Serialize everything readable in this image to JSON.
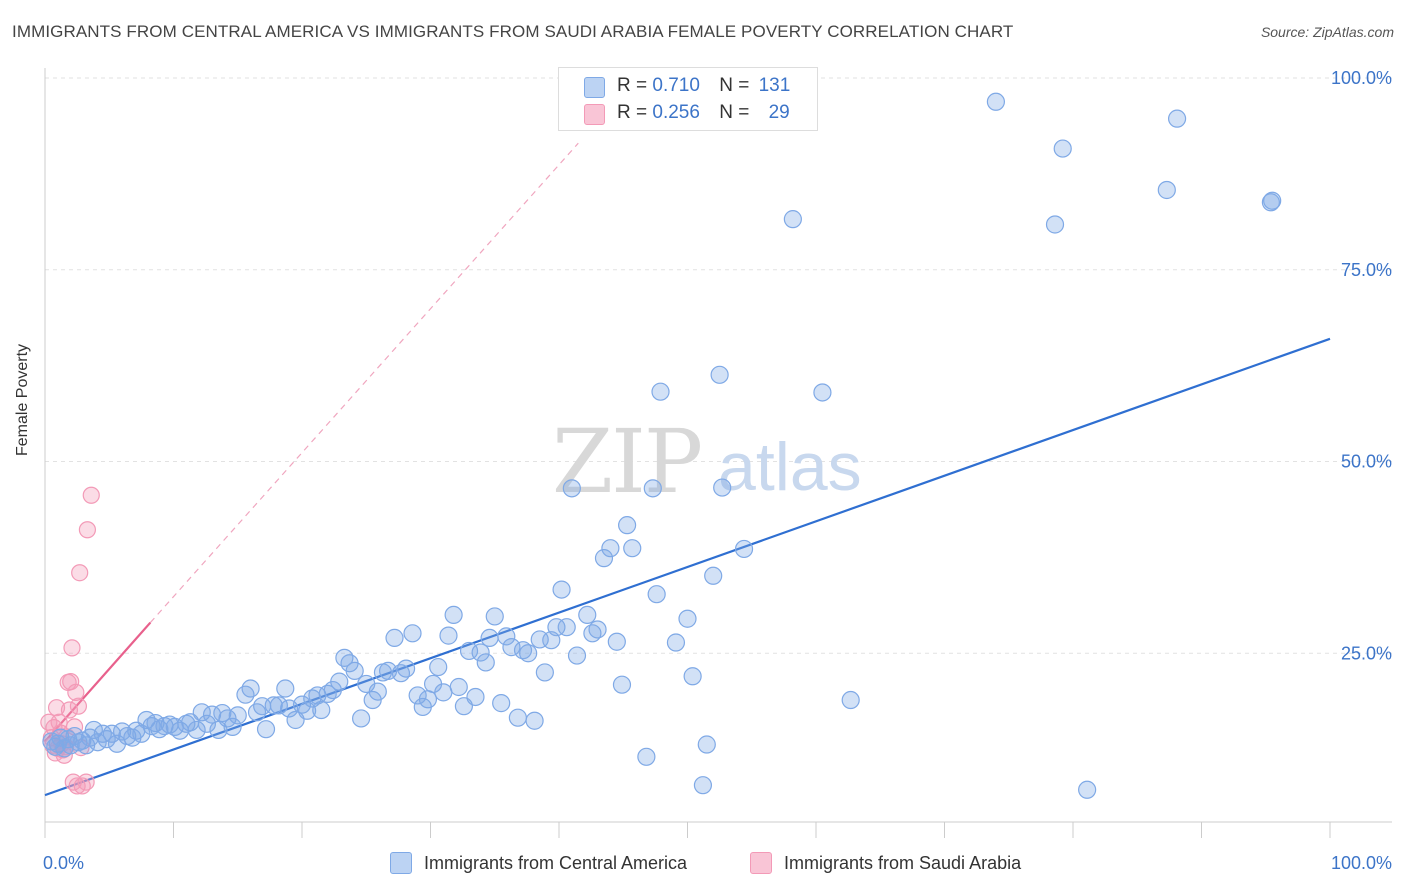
{
  "title": "IMMIGRANTS FROM CENTRAL AMERICA VS IMMIGRANTS FROM SAUDI ARABIA FEMALE POVERTY CORRELATION CHART",
  "source": "Source: ZipAtlas.com",
  "watermark": {
    "zip": "ZIP",
    "atlas": "atlas"
  },
  "legend_top": [
    {
      "r_label": "R =",
      "r_value": "0.710",
      "n_label": "N =",
      "n_value": "131"
    },
    {
      "r_label": "R =",
      "r_value": "0.256",
      "n_label": "N =",
      "n_value": "29"
    }
  ],
  "chart_data": {
    "type": "scatter",
    "title": "IMMIGRANTS FROM CENTRAL AMERICA VS IMMIGRANTS FROM SAUDI ARABIA FEMALE POVERTY CORRELATION CHART",
    "xlabel": "",
    "ylabel": "Female Poverty",
    "xlim": [
      0,
      100
    ],
    "ylim": [
      0,
      105
    ],
    "x_tick_labels": [
      "0.0%",
      "100.0%"
    ],
    "y_ticks": [
      25,
      50,
      75,
      100
    ],
    "y_tick_labels": [
      "25.0%",
      "50.0%",
      "75.0%",
      "100.0%"
    ],
    "legend_position": "bottom",
    "grid": true,
    "series": [
      {
        "name": "Immigrants from Central America",
        "color": "#7fa9e6",
        "line_color": "#2f6fd1",
        "r": 0.71,
        "n": 131,
        "trend": {
          "x": [
            0,
            100
          ],
          "y": [
            6.5,
            66.0
          ]
        },
        "points": [
          [
            0.5,
            13.5
          ],
          [
            0.8,
            12.8
          ],
          [
            1.0,
            13.2
          ],
          [
            1.2,
            14.0
          ],
          [
            1.5,
            12.6
          ],
          [
            1.8,
            13.8
          ],
          [
            2.0,
            13.0
          ],
          [
            2.3,
            14.2
          ],
          [
            2.6,
            13.4
          ],
          [
            2.9,
            13.6
          ],
          [
            3.2,
            13.0
          ],
          [
            3.5,
            14.0
          ],
          [
            3.8,
            15.0
          ],
          [
            4.1,
            13.4
          ],
          [
            4.5,
            14.5
          ],
          [
            4.8,
            13.8
          ],
          [
            5.2,
            14.5
          ],
          [
            5.6,
            13.2
          ],
          [
            6.0,
            14.8
          ],
          [
            6.4,
            14.2
          ],
          [
            6.8,
            14.0
          ],
          [
            7.1,
            14.9
          ],
          [
            7.5,
            14.5
          ],
          [
            7.9,
            16.3
          ],
          [
            8.3,
            15.5
          ],
          [
            8.6,
            15.9
          ],
          [
            8.9,
            15.1
          ],
          [
            9.3,
            15.5
          ],
          [
            9.7,
            15.7
          ],
          [
            10.1,
            15.4
          ],
          [
            10.5,
            14.9
          ],
          [
            11.0,
            15.8
          ],
          [
            11.3,
            16.0
          ],
          [
            11.8,
            15.0
          ],
          [
            12.2,
            17.3
          ],
          [
            12.6,
            15.8
          ],
          [
            13.0,
            17.0
          ],
          [
            13.5,
            15.0
          ],
          [
            13.8,
            17.2
          ],
          [
            14.2,
            16.5
          ],
          [
            14.6,
            15.4
          ],
          [
            15.0,
            16.9
          ],
          [
            15.6,
            19.6
          ],
          [
            16.0,
            20.4
          ],
          [
            16.5,
            17.3
          ],
          [
            16.9,
            18.1
          ],
          [
            17.2,
            15.1
          ],
          [
            17.8,
            18.2
          ],
          [
            18.2,
            18.2
          ],
          [
            18.7,
            20.4
          ],
          [
            19.0,
            17.8
          ],
          [
            19.5,
            16.3
          ],
          [
            20.0,
            18.3
          ],
          [
            20.4,
            17.5
          ],
          [
            20.8,
            19.1
          ],
          [
            21.2,
            19.5
          ],
          [
            21.5,
            17.6
          ],
          [
            22.0,
            19.7
          ],
          [
            22.4,
            20.2
          ],
          [
            22.9,
            21.3
          ],
          [
            23.3,
            24.4
          ],
          [
            23.7,
            23.7
          ],
          [
            24.1,
            22.7
          ],
          [
            24.6,
            16.5
          ],
          [
            25.0,
            21.0
          ],
          [
            25.5,
            18.9
          ],
          [
            25.9,
            20.0
          ],
          [
            26.3,
            22.5
          ],
          [
            26.7,
            22.7
          ],
          [
            27.2,
            27.0
          ],
          [
            27.7,
            22.4
          ],
          [
            28.1,
            23.0
          ],
          [
            28.6,
            27.6
          ],
          [
            29.0,
            19.5
          ],
          [
            29.4,
            18.0
          ],
          [
            29.8,
            19.0
          ],
          [
            30.2,
            21.0
          ],
          [
            30.6,
            23.2
          ],
          [
            31.0,
            19.9
          ],
          [
            31.4,
            27.3
          ],
          [
            31.8,
            30.0
          ],
          [
            32.2,
            20.6
          ],
          [
            32.6,
            18.1
          ],
          [
            33.0,
            25.3
          ],
          [
            33.5,
            19.3
          ],
          [
            33.9,
            25.1
          ],
          [
            34.3,
            23.8
          ],
          [
            34.6,
            27.0
          ],
          [
            35.0,
            29.8
          ],
          [
            35.5,
            18.5
          ],
          [
            35.9,
            27.2
          ],
          [
            36.3,
            25.8
          ],
          [
            36.8,
            16.6
          ],
          [
            37.2,
            25.4
          ],
          [
            37.6,
            25.0
          ],
          [
            38.1,
            16.2
          ],
          [
            38.5,
            26.8
          ],
          [
            38.9,
            22.5
          ],
          [
            39.4,
            26.7
          ],
          [
            39.8,
            28.4
          ],
          [
            40.2,
            33.3
          ],
          [
            40.6,
            28.4
          ],
          [
            41.0,
            46.5
          ],
          [
            41.4,
            24.7
          ],
          [
            42.2,
            30.0
          ],
          [
            42.6,
            27.6
          ],
          [
            43.0,
            28.1
          ],
          [
            43.5,
            37.4
          ],
          [
            44.0,
            38.7
          ],
          [
            44.5,
            26.5
          ],
          [
            44.9,
            20.9
          ],
          [
            45.3,
            41.7
          ],
          [
            45.7,
            38.7
          ],
          [
            46.8,
            11.5
          ],
          [
            47.3,
            46.5
          ],
          [
            47.6,
            32.7
          ],
          [
            47.9,
            59.1
          ],
          [
            49.1,
            26.4
          ],
          [
            50.0,
            29.5
          ],
          [
            50.4,
            22.0
          ],
          [
            51.2,
            7.8
          ],
          [
            51.5,
            13.1
          ],
          [
            52.0,
            35.1
          ],
          [
            52.5,
            61.3
          ],
          [
            52.7,
            46.6
          ],
          [
            54.4,
            38.6
          ],
          [
            58.2,
            81.6
          ],
          [
            60.5,
            59.0
          ],
          [
            62.7,
            18.9
          ],
          [
            81.1,
            7.2
          ],
          [
            95.5,
            84.0
          ]
        ]
      },
      {
        "name": "Immigrants from Saudi Arabia",
        "color": "#f39ab7",
        "line_color": "#e8608c",
        "r": 0.256,
        "n": 29,
        "trend": {
          "x": [
            0,
            8.2
          ],
          "y": [
            13.5,
            29.0
          ]
        },
        "trend_extension": {
          "x": [
            8.2,
            41.5
          ],
          "y": [
            29.0,
            91.5
          ]
        },
        "points": [
          [
            0.3,
            16.0
          ],
          [
            0.5,
            14.0
          ],
          [
            0.6,
            13.0
          ],
          [
            0.7,
            15.3
          ],
          [
            0.8,
            12.0
          ],
          [
            0.9,
            17.9
          ],
          [
            1.0,
            12.6
          ],
          [
            1.1,
            16.0
          ],
          [
            1.2,
            14.6
          ],
          [
            1.3,
            13.2
          ],
          [
            1.4,
            12.4
          ],
          [
            1.5,
            11.7
          ],
          [
            1.6,
            12.8
          ],
          [
            1.7,
            14.1
          ],
          [
            1.8,
            21.2
          ],
          [
            1.9,
            17.6
          ],
          [
            2.0,
            21.3
          ],
          [
            2.1,
            25.7
          ],
          [
            2.2,
            8.2
          ],
          [
            2.3,
            15.4
          ],
          [
            2.4,
            19.9
          ],
          [
            2.5,
            7.7
          ],
          [
            2.6,
            18.1
          ],
          [
            2.7,
            35.5
          ],
          [
            2.8,
            12.7
          ],
          [
            2.9,
            7.7
          ],
          [
            3.2,
            8.2
          ],
          [
            3.3,
            41.1
          ],
          [
            3.6,
            45.6
          ]
        ]
      }
    ],
    "extra_blue_points_upper": [
      [
        74.0,
        96.9
      ],
      [
        78.6,
        80.9
      ],
      [
        79.2,
        90.8
      ],
      [
        87.3,
        85.4
      ],
      [
        88.1,
        94.7
      ],
      [
        95.4,
        83.8
      ]
    ]
  },
  "legend_bottom": [
    {
      "label": "Immigrants from Central America"
    },
    {
      "label": "Immigrants from Saudi Arabia"
    }
  ]
}
